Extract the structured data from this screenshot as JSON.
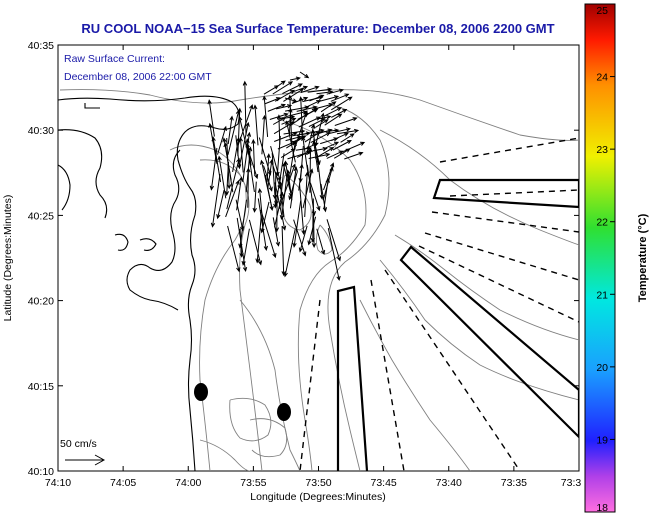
{
  "title": "RU COOL  NOAA−15  Sea Surface Temperature:  December 08, 2006 2200 GMT",
  "annotation": {
    "line1": "Raw Surface Current:",
    "line2": "December 08, 2006 22:00 GMT"
  },
  "scale_label": "50 cm/s",
  "colors": {
    "title_text": "#1a1aa8",
    "coast": "#000000",
    "contour": "#808080",
    "vectors": "#000000"
  },
  "chart_data": {
    "type": "map",
    "xlabel": "Longitude (Degrees:Minutes)",
    "ylabel": "Latitude (Degrees:Minutes)",
    "x_ticks": [
      "74:10",
      "74:05",
      "74:00",
      "73:55",
      "73:50",
      "73:45",
      "73:40",
      "73:35",
      "73:3"
    ],
    "y_ticks": [
      "40:10",
      "40:15",
      "40:20",
      "40:25",
      "40:30",
      "40:35"
    ],
    "lon_range_min_west": [
      -4450,
      -4410
    ],
    "lat_range_min": [
      2410,
      2435
    ],
    "colorbar": {
      "label": "Temperature (°C)",
      "ticks": [
        "18",
        "19",
        "20",
        "21",
        "22",
        "23",
        "24",
        "25"
      ],
      "range": [
        18,
        25
      ]
    }
  }
}
